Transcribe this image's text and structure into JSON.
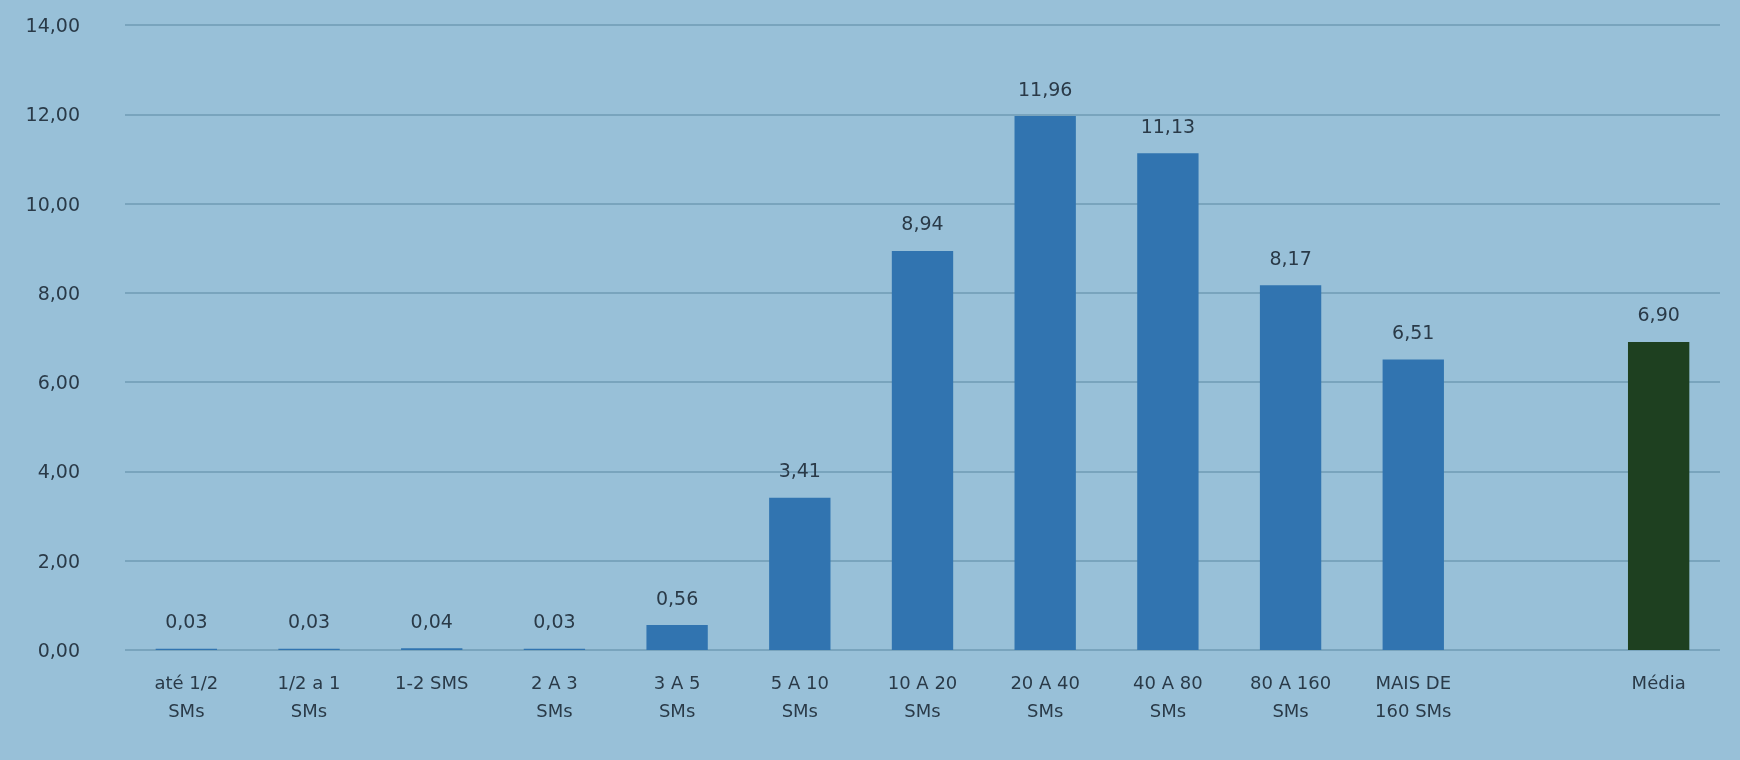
{
  "chart_data": {
    "type": "bar",
    "categories": [
      "até 1/2\nSMs",
      "1/2 a 1\nSMs",
      "1-2 SMS",
      "2 A 3\nSMs",
      "3 A 5\nSMs",
      "5 A 10\nSMs",
      "10 A 20\nSMs",
      "20 A 40\nSMs",
      "40 A 80\nSMs",
      "80 A 160\nSMs",
      "MAIS DE\n160 SMs",
      null,
      "Média"
    ],
    "values": [
      0.03,
      0.03,
      0.04,
      0.03,
      0.56,
      3.41,
      8.94,
      11.96,
      11.13,
      8.17,
      6.51,
      null,
      6.9
    ],
    "value_labels": [
      "0,03",
      "0,03",
      "0,04",
      "0,03",
      "0,56",
      "3,41",
      "8,94",
      "11,96",
      "11,13",
      "8,17",
      "6,51",
      null,
      "6,90"
    ],
    "colors": [
      "#3174b0",
      "#3174b0",
      "#3174b0",
      "#3174b0",
      "#3174b0",
      "#3174b0",
      "#3174b0",
      "#3174b0",
      "#3174b0",
      "#3174b0",
      "#3174b0",
      "#3174b0",
      "#1e4020"
    ],
    "ylim": [
      0,
      14
    ],
    "yticks": [
      {
        "value": 0,
        "label": "0,00"
      },
      {
        "value": 2,
        "label": "2,00"
      },
      {
        "value": 4,
        "label": "4,00"
      },
      {
        "value": 6,
        "label": "6,00"
      },
      {
        "value": 8,
        "label": "8,00"
      },
      {
        "value": 10,
        "label": "10,00"
      },
      {
        "value": 12,
        "label": "12,00"
      },
      {
        "value": 14,
        "label": "14,00"
      }
    ],
    "grid": "y"
  }
}
